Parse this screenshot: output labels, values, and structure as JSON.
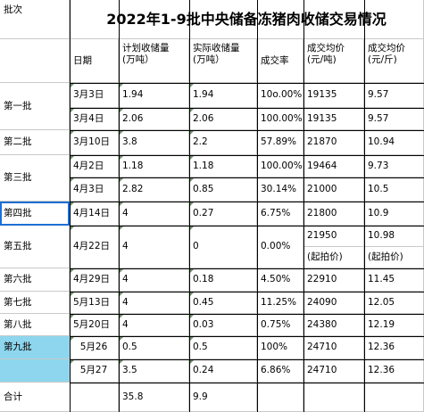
{
  "title": "2022年1-9批中央储备冻猪肉收储交易情况",
  "corner_label": "批次",
  "headers": {
    "date": "日期",
    "planned": "计划收储量\n(万吨）",
    "actual": "实际收储量\n(万吨）",
    "rate": "成交率",
    "price_ton": "成交均价\n(元/吨)",
    "price_jin": "成交均价\n(元/斤)"
  },
  "batches": [
    "第一批",
    "第二批",
    "第三批",
    "第四批",
    "第五批",
    "第六批",
    "第七批",
    "第八批",
    "第九批"
  ],
  "rows": [
    {
      "date": "3月3日",
      "planned": "1.94",
      "actual": "1.94",
      "rate": "10o.00%",
      "price_ton": "19135",
      "price_jin": "9.57"
    },
    {
      "date": "3月4日",
      "planned": "2.06",
      "actual": "2.06",
      "rate": "100.00%",
      "price_ton": "19135",
      "price_jin": "9.57"
    },
    {
      "date": "3月10日",
      "planned": "3.8",
      "actual": "2.2",
      "rate": "57.89%",
      "price_ton": "21870",
      "price_jin": "10.94"
    },
    {
      "date": "4月2日",
      "planned": "1.18",
      "actual": "1.18",
      "rate": "100.00%",
      "price_ton": "19464",
      "price_jin": "9.73"
    },
    {
      "date": "4月3日",
      "planned": "2.82",
      "actual": "0.85",
      "rate": "30.14%",
      "price_ton": "21000",
      "price_jin": "10.5"
    },
    {
      "date": "4月14日",
      "planned": "4",
      "actual": "0.27",
      "rate": "6.75%",
      "price_ton": "21800",
      "price_jin": "10.9"
    },
    {
      "date": "4月22日",
      "planned": "4",
      "actual": "0",
      "rate": "0.00%",
      "price_ton": "21950",
      "price_jin": "10.98",
      "price_ton_note": "(起拍价)",
      "price_jin_note": "(起拍价)"
    },
    {
      "date": "4月29日",
      "planned": "4",
      "actual": "0.18",
      "rate": "4.50%",
      "price_ton": "22910",
      "price_jin": "11.45"
    },
    {
      "date": "5月13日",
      "planned": "4",
      "actual": "0.45",
      "rate": "11.25%",
      "price_ton": "24090",
      "price_jin": "12.05"
    },
    {
      "date": "5月20日",
      "planned": "4",
      "actual": "0.03",
      "rate": "0.75%",
      "price_ton": "24380",
      "price_jin": "12.19"
    },
    {
      "date": "5月26",
      "planned": "0.5",
      "actual": "0.5",
      "rate": "100%",
      "price_ton": "24710",
      "price_jin": "12.36"
    },
    {
      "date": "5月27",
      "planned": "3.5",
      "actual": "0.24",
      "rate": "6.86%",
      "price_ton": "24710",
      "price_jin": "12.36"
    }
  ],
  "total": {
    "label": "合计",
    "planned": "35.8",
    "actual": "9.9"
  },
  "colors": {
    "highlight": "#8dd6ee",
    "selection": "#1f6fd1",
    "grid": "#c9c9c9",
    "border": "#000000"
  }
}
